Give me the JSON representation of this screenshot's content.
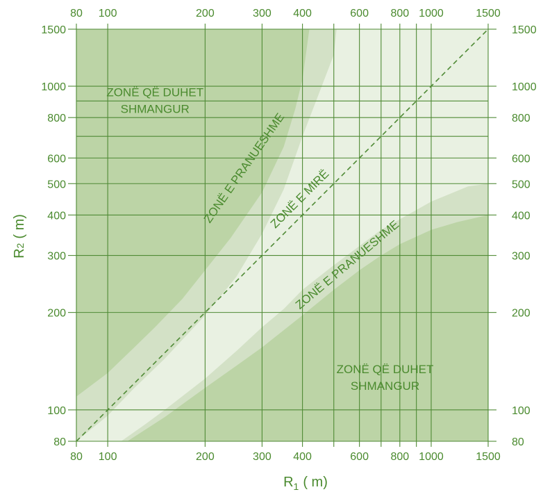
{
  "chart_data": {
    "type": "area",
    "xlabel": "R1 (m)",
    "ylabel": "R2 (m)",
    "xlabel_main": "R",
    "xlabel_sub": "1",
    "xlabel_unit": "( m)",
    "ylabel_main": "R",
    "ylabel_sub": "2",
    "ylabel_unit": "( m)",
    "x_scale": "log",
    "y_scale": "log",
    "xlim": [
      80,
      1500
    ],
    "ylim": [
      80,
      1500
    ],
    "grid": true,
    "x_ticks": [
      80,
      100,
      200,
      300,
      400,
      600,
      800,
      1000,
      1500
    ],
    "y_ticks": [
      80,
      100,
      200,
      300,
      400,
      500,
      600,
      800,
      1000,
      1500
    ],
    "x_gridlines": [
      80,
      100,
      200,
      300,
      400,
      500,
      600,
      700,
      800,
      900,
      1000,
      1500
    ],
    "y_gridlines": [
      80,
      100,
      200,
      300,
      400,
      500,
      600,
      700,
      800,
      900,
      1000,
      1500
    ],
    "colors": {
      "avoid": "#bcd4a6",
      "acceptable": "#d3e1c6",
      "good": "#e9f1e2",
      "grid": "#4f8a35",
      "text": "#4a8a2e"
    },
    "reference_line": {
      "x": [
        80,
        1500
      ],
      "y": [
        80,
        1500
      ],
      "style": "dashed"
    },
    "zones": [
      {
        "name": "upper-avoid-boundary",
        "x": [
          80,
          100,
          120,
          140,
          170,
          200,
          240,
          300,
          350,
          380,
          400,
          420
        ],
        "y": [
          110,
          130,
          155,
          180,
          220,
          270,
          340,
          470,
          650,
          850,
          1050,
          1500
        ]
      },
      {
        "name": "upper-acceptable-boundary",
        "x": [
          80,
          100,
          120,
          150,
          200,
          250,
          300,
          350,
          400,
          450,
          500,
          510
        ],
        "y": [
          80,
          96,
          116,
          144,
          196,
          258,
          350,
          480,
          700,
          950,
          1250,
          1500
        ]
      },
      {
        "name": "lower-acceptable-boundary",
        "x": [
          110,
          130,
          150,
          200,
          250,
          300,
          350,
          400,
          500,
          700,
          1000,
          1300,
          1500
        ],
        "y": [
          80,
          90,
          100,
          125,
          152,
          180,
          205,
          235,
          280,
          360,
          440,
          490,
          500
        ]
      },
      {
        "name": "lower-avoid-boundary",
        "x": [
          115,
          150,
          200,
          250,
          300,
          400,
          500,
          600,
          700,
          800,
          1000,
          1200,
          1500
        ],
        "y": [
          80,
          95,
          117,
          137,
          156,
          196,
          235,
          270,
          300,
          325,
          360,
          380,
          400
        ]
      }
    ],
    "annotations": [
      {
        "lines": [
          "ZONË QË DUHET",
          "SHMANGUR"
        ],
        "x": 140,
        "y": 930,
        "rotate": 0
      },
      {
        "lines": [
          "ZONË E PRANUESHME"
        ],
        "x": 270,
        "y": 550,
        "rotate": -55
      },
      {
        "lines": [
          "ZONË E MIRË"
        ],
        "x": 400,
        "y": 440,
        "rotate": -45
      },
      {
        "lines": [
          "ZONË E PRANUESHME"
        ],
        "x": 560,
        "y": 275,
        "rotate": -40
      },
      {
        "lines": [
          "ZONË QË DUHET",
          "SHMANGUR"
        ],
        "x": 720,
        "y": 130,
        "rotate": 0
      }
    ]
  }
}
